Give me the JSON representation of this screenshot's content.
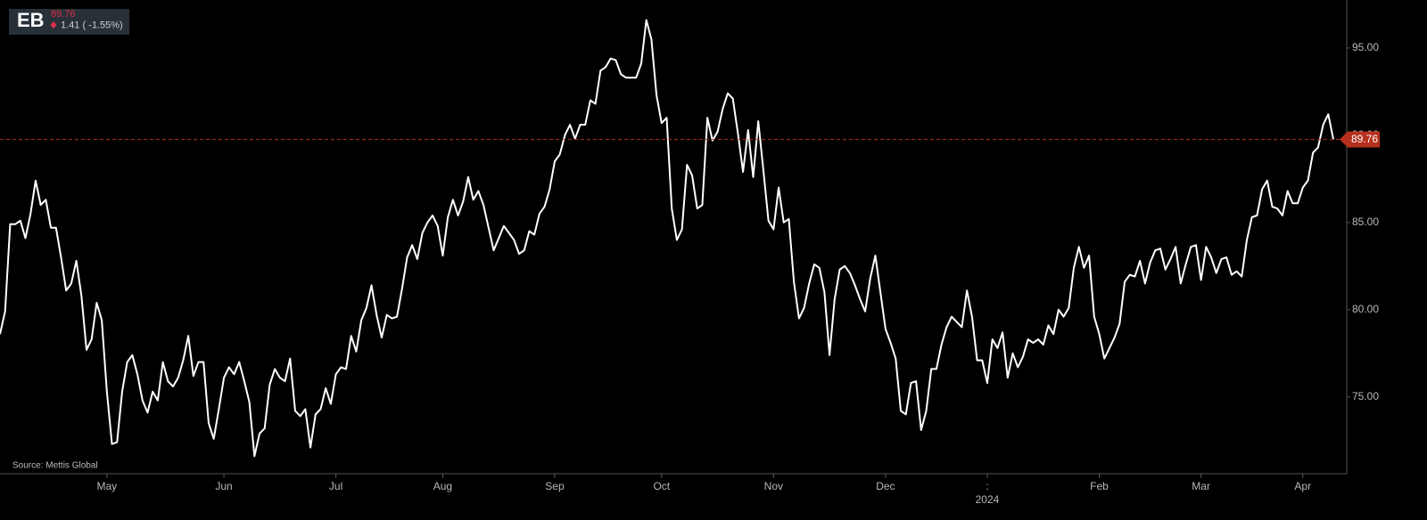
{
  "header": {
    "symbol": "EB",
    "change": "1.41 ( -1.55%)"
  },
  "chart_data": {
    "type": "line",
    "source": "Source: Mettis Global",
    "color": "#ffffff",
    "last_value": 89.76,
    "last_color": "#b5301e",
    "ylim": [
      70.6,
      97.75
    ],
    "yticks": [
      {
        "value": 75,
        "label": "75.00"
      },
      {
        "value": 80,
        "label": "80.00"
      },
      {
        "value": 85,
        "label": "85.00"
      },
      {
        "value": 90,
        "label": "90.00"
      },
      {
        "value": 95,
        "label": "95.00"
      }
    ],
    "categories": [
      null,
      null,
      null,
      null,
      null,
      null,
      null,
      null,
      null,
      null,
      null,
      null,
      null,
      null,
      null,
      null,
      null,
      null,
      null,
      null,
      null,
      "May",
      null,
      null,
      null,
      null,
      null,
      null,
      null,
      null,
      null,
      null,
      null,
      null,
      null,
      null,
      null,
      null,
      null,
      null,
      null,
      null,
      null,
      null,
      "Jun",
      null,
      null,
      null,
      null,
      null,
      null,
      null,
      null,
      null,
      null,
      null,
      null,
      null,
      null,
      null,
      null,
      null,
      null,
      null,
      null,
      null,
      "Jul",
      null,
      null,
      null,
      null,
      null,
      null,
      null,
      null,
      null,
      null,
      null,
      null,
      null,
      null,
      null,
      null,
      null,
      null,
      null,
      null,
      "Aug",
      null,
      null,
      null,
      null,
      null,
      null,
      null,
      null,
      null,
      null,
      null,
      null,
      null,
      null,
      null,
      null,
      null,
      null,
      null,
      null,
      null,
      "Sep",
      null,
      null,
      null,
      null,
      null,
      null,
      null,
      null,
      null,
      null,
      null,
      null,
      null,
      null,
      null,
      null,
      null,
      null,
      null,
      null,
      "Oct",
      null,
      null,
      null,
      null,
      null,
      null,
      null,
      null,
      null,
      null,
      null,
      null,
      null,
      null,
      null,
      null,
      null,
      null,
      null,
      null,
      null,
      "Nov",
      null,
      null,
      null,
      null,
      null,
      null,
      null,
      null,
      null,
      null,
      null,
      null,
      null,
      null,
      null,
      null,
      null,
      null,
      null,
      null,
      null,
      "Dec",
      null,
      null,
      null,
      null,
      null,
      null,
      null,
      null,
      null,
      null,
      null,
      null,
      null,
      null,
      null,
      null,
      null,
      null,
      null,
      "2024",
      null,
      null,
      null,
      null,
      null,
      null,
      null,
      null,
      null,
      null,
      null,
      null,
      null,
      null,
      null,
      null,
      null,
      null,
      null,
      null,
      null,
      "Feb",
      null,
      null,
      null,
      null,
      null,
      null,
      null,
      null,
      null,
      null,
      null,
      null,
      null,
      null,
      null,
      null,
      null,
      null,
      null,
      "Mar",
      null,
      null,
      null,
      null,
      null,
      null,
      null,
      null,
      null,
      null,
      null,
      null,
      null,
      null,
      null,
      null,
      null,
      null,
      null,
      "Apr",
      null,
      null,
      null,
      null,
      null,
      null
    ],
    "values": [
      78.6,
      79.9,
      84.9,
      84.9,
      85.1,
      84.1,
      85.5,
      87.4,
      86.0,
      86.3,
      84.7,
      84.7,
      83.0,
      81.1,
      81.5,
      82.8,
      80.8,
      77.7,
      78.3,
      80.4,
      79.4,
      75.3,
      72.3,
      72.4,
      75.3,
      77.0,
      77.4,
      76.3,
      74.8,
      74.1,
      75.3,
      74.8,
      77.0,
      75.9,
      75.6,
      76.1,
      77.1,
      78.5,
      76.2,
      77.0,
      77.0,
      73.5,
      72.6,
      74.3,
      76.1,
      76.7,
      76.3,
      77.0,
      75.9,
      74.7,
      71.6,
      72.9,
      73.2,
      75.7,
      76.6,
      76.1,
      75.9,
      77.2,
      74.2,
      73.9,
      74.3,
      72.1,
      74.0,
      74.3,
      75.5,
      74.6,
      76.3,
      76.7,
      76.6,
      78.5,
      77.6,
      79.4,
      80.1,
      81.4,
      79.7,
      78.4,
      79.7,
      79.5,
      79.6,
      81.2,
      83.0,
      83.7,
      82.9,
      84.4,
      85.0,
      85.4,
      84.8,
      83.1,
      85.3,
      86.3,
      85.4,
      86.2,
      87.6,
      86.3,
      86.8,
      86.0,
      84.7,
      83.4,
      84.1,
      84.8,
      84.4,
      84.0,
      83.2,
      83.4,
      84.5,
      84.3,
      85.5,
      85.9,
      86.9,
      88.5,
      88.9,
      90.0,
      90.6,
      89.8,
      90.6,
      90.6,
      92.0,
      91.8,
      93.7,
      93.9,
      94.4,
      94.3,
      93.5,
      93.3,
      93.3,
      93.3,
      94.1,
      96.6,
      95.5,
      92.3,
      90.7,
      91.0,
      85.8,
      84.0,
      84.6,
      88.3,
      87.7,
      85.8,
      86.0,
      91.0,
      89.7,
      90.2,
      91.5,
      92.4,
      92.1,
      90.1,
      87.9,
      90.3,
      87.6,
      90.8,
      88.0,
      85.1,
      84.6,
      87.0,
      85.0,
      85.2,
      81.6,
      79.5,
      80.1,
      81.5,
      82.6,
      82.4,
      81.0,
      77.4,
      80.6,
      82.3,
      82.5,
      82.1,
      81.4,
      80.6,
      79.9,
      81.8,
      83.1,
      81.0,
      78.9,
      78.1,
      77.2,
      74.2,
      74.0,
      75.8,
      75.9,
      73.1,
      74.2,
      76.6,
      76.6,
      78.0,
      79.0,
      79.6,
      79.3,
      79.0,
      81.1,
      79.6,
      77.1,
      77.1,
      75.8,
      78.3,
      77.8,
      78.7,
      76.1,
      77.5,
      76.7,
      77.3,
      78.3,
      78.1,
      78.3,
      78.0,
      79.1,
      78.6,
      80.0,
      79.6,
      80.1,
      82.4,
      83.6,
      82.4,
      83.1,
      79.6,
      78.6,
      77.2,
      77.8,
      78.4,
      79.2,
      81.6,
      82.0,
      81.9,
      82.8,
      81.5,
      82.7,
      83.4,
      83.5,
      82.3,
      82.9,
      83.6,
      81.5,
      82.6,
      83.6,
      83.7,
      81.7,
      83.6,
      83.0,
      82.1,
      82.9,
      83.0,
      82.0,
      82.2,
      81.9,
      84.0,
      85.3,
      85.4,
      86.9,
      87.4,
      85.9,
      85.8,
      85.4,
      86.8,
      86.1,
      86.1,
      87.0,
      87.4,
      89.0,
      89.3,
      90.6,
      91.2,
      89.76
    ]
  }
}
